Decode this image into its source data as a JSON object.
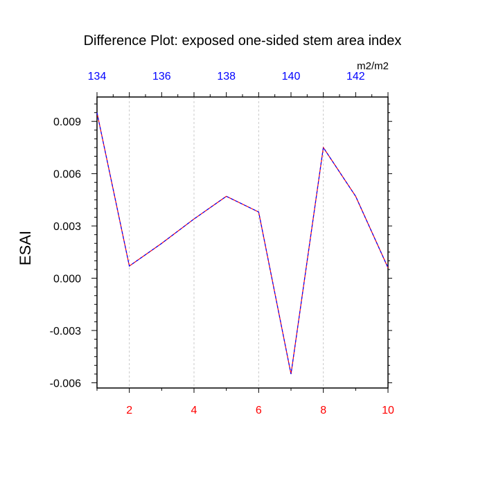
{
  "chart_data": {
    "type": "line",
    "title": "Difference Plot: exposed one-sided stem area index",
    "ylabel": "ESAI",
    "units": "m2/m2",
    "x": [
      1,
      2,
      3,
      4,
      5,
      6,
      7,
      8,
      9,
      10
    ],
    "series": [
      {
        "values": [
          0.0095,
          0.0007,
          0.002,
          0.0034,
          0.0047,
          0.0038,
          -0.0055,
          0.0075,
          0.0047,
          0.0006
        ]
      }
    ],
    "xlim": [
      1,
      10
    ],
    "ylim": [
      -0.0063,
      0.0104
    ],
    "bottom_ticks": [
      2,
      4,
      6,
      8,
      10
    ],
    "bottom_tick_labels": [
      "2",
      "4",
      "6",
      "8",
      "10"
    ],
    "top_tick_labels": [
      "134",
      "136",
      "138",
      "140",
      "142"
    ],
    "y_ticks": [
      0.009,
      0.006,
      0.003,
      0.0,
      -0.003,
      -0.006
    ],
    "y_tick_labels": [
      "0.009",
      "0.006",
      "0.003",
      "0.000",
      "-0.003",
      "-0.006"
    ],
    "grid": "vertical dashed at bottom ticks",
    "colors": {
      "bottom_ticks": "#ff0000",
      "top_ticks": "#0000ff",
      "line_a": "#ff0000",
      "line_b": "#0000ff",
      "grid": "#c8c8c8"
    }
  }
}
